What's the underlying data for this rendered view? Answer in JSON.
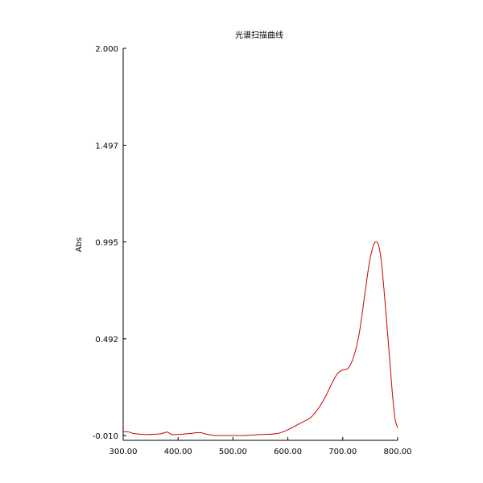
{
  "chart_data": {
    "type": "line",
    "title": "光谱扫描曲线",
    "xlabel": "",
    "ylabel": "Abs",
    "xlim": [
      300,
      800
    ],
    "ylim": [
      -0.01,
      2.0
    ],
    "x_ticks": [
      300,
      400,
      500,
      600,
      700,
      800
    ],
    "x_tick_labels": [
      "300.00",
      "400.00",
      "500.00",
      "600.00",
      "700.00",
      "800.00"
    ],
    "y_ticks": [
      -0.01,
      0.492,
      0.995,
      1.497,
      2.0
    ],
    "y_tick_labels": [
      "-0.010",
      "0.492",
      "0.995",
      "1.497",
      "2.000"
    ],
    "grid": false,
    "line_color": "#cc0000",
    "series": [
      {
        "x": [
          300,
          310,
          320,
          340,
          360,
          370,
          380,
          385,
          390,
          400,
          420,
          440,
          450,
          470,
          500,
          520,
          550,
          580,
          600,
          620,
          640,
          650,
          660,
          670,
          680,
          690,
          700,
          710,
          720,
          730,
          740,
          748,
          755,
          760,
          765,
          770,
          775,
          780,
          785,
          790,
          795,
          800
        ],
        "y": [
          0.01,
          0.008,
          0.0,
          -0.005,
          -0.003,
          0.0,
          0.008,
          0.0,
          -0.005,
          -0.005,
          0.0,
          0.005,
          -0.002,
          -0.01,
          -0.01,
          -0.01,
          -0.005,
          0.0,
          0.02,
          0.05,
          0.08,
          0.11,
          0.15,
          0.2,
          0.26,
          0.31,
          0.33,
          0.34,
          0.4,
          0.52,
          0.72,
          0.88,
          0.97,
          0.995,
          0.98,
          0.9,
          0.75,
          0.58,
          0.4,
          0.22,
          0.08,
          0.03
        ]
      }
    ]
  }
}
